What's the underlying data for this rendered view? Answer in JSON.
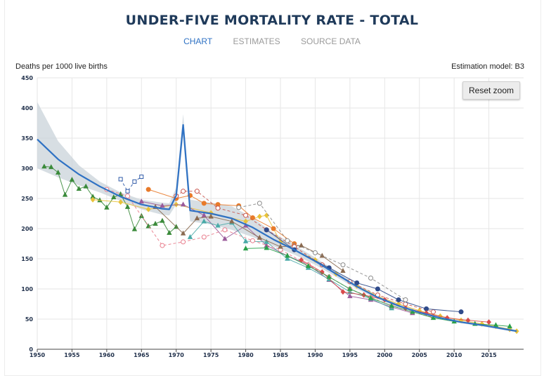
{
  "title": "UNDER-FIVE MORTALITY RATE - TOTAL",
  "tabs": [
    {
      "label": "CHART",
      "active": true
    },
    {
      "label": "ESTIMATES",
      "active": false
    },
    {
      "label": "SOURCE DATA",
      "active": false
    }
  ],
  "y_axis_label": "Deaths per 1000 live births",
  "model_label": "Estimation model: B3",
  "reset_zoom_label": "Reset zoom",
  "colors": {
    "estimate_line": "#2f72c4",
    "uncertainty_band": "#c9d3d9",
    "grid": "#e6e6e6"
  },
  "chart_data": {
    "type": "line",
    "xlim": [
      1950,
      2020
    ],
    "ylim": [
      0,
      450
    ],
    "x_ticks": [
      1950,
      1955,
      1960,
      1965,
      1970,
      1975,
      1980,
      1985,
      1990,
      1995,
      2000,
      2005,
      2010,
      2015
    ],
    "y_ticks": [
      0,
      50,
      100,
      150,
      200,
      250,
      300,
      350,
      400,
      450
    ],
    "grid": true,
    "estimate": {
      "x": [
        1950,
        1953,
        1956,
        1959,
        1962,
        1965,
        1968,
        1969,
        1970,
        1971,
        1972,
        1975,
        1978,
        1981,
        1984,
        1987,
        1990,
        1993,
        1996,
        1999,
        2002,
        2005,
        2008,
        2011,
        2014,
        2017,
        2019
      ],
      "y": [
        348,
        315,
        290,
        270,
        253,
        240,
        233,
        232,
        255,
        372,
        230,
        225,
        217,
        202,
        182,
        165,
        146,
        125,
        104,
        86,
        72,
        61,
        52,
        45,
        40,
        34,
        30
      ]
    },
    "band_upper": {
      "x": [
        1950,
        1953,
        1956,
        1959,
        1962,
        1965,
        1968,
        1969,
        1970,
        1971,
        1972,
        1975,
        1978,
        1981,
        1984,
        1987,
        1990,
        1993,
        1996,
        1999,
        2002,
        2005,
        2008,
        2011,
        2014,
        2017,
        2019
      ],
      "y": [
        410,
        345,
        305,
        278,
        260,
        248,
        243,
        242,
        268,
        390,
        248,
        243,
        237,
        218,
        193,
        173,
        152,
        130,
        108,
        89,
        75,
        63,
        54,
        47,
        42,
        36,
        32
      ]
    },
    "band_lower": {
      "x": [
        1950,
        1953,
        1956,
        1959,
        1962,
        1965,
        1968,
        1969,
        1970,
        1971,
        1972,
        1975,
        1978,
        1981,
        1984,
        1987,
        1990,
        1993,
        1996,
        1999,
        2002,
        2005,
        2008,
        2011,
        2014,
        2017,
        2019
      ],
      "y": [
        300,
        285,
        272,
        260,
        246,
        232,
        223,
        222,
        240,
        352,
        212,
        207,
        198,
        186,
        171,
        157,
        140,
        120,
        100,
        83,
        69,
        59,
        50,
        43,
        38,
        32,
        28
      ]
    },
    "series": [
      {
        "color": "#3a8a3a",
        "marker": "triangle",
        "style": "solid",
        "x": [
          1951,
          1952,
          1953,
          1954,
          1955,
          1956,
          1957,
          1958,
          1959,
          1960,
          1961,
          1962,
          1963,
          1964,
          1965,
          1966,
          1967,
          1968,
          1969,
          1970
        ],
        "y": [
          303,
          302,
          293,
          256,
          281,
          266,
          270,
          253,
          247,
          235,
          252,
          257,
          236,
          199,
          221,
          204,
          208,
          213,
          193,
          203
        ]
      },
      {
        "color": "#e8c23a",
        "marker": "diamond",
        "style": "solid",
        "x": [
          1958,
          1962,
          1966,
          1970,
          1975,
          1980,
          1982,
          1983,
          1985,
          1987,
          1990,
          1993,
          1996,
          1999,
          2002,
          2005,
          2008,
          2011,
          2014,
          2016,
          2018,
          2019
        ],
        "y": [
          248,
          244,
          232,
          240,
          226,
          212,
          220,
          222,
          178,
          165,
          148,
          125,
          105,
          88,
          75,
          64,
          55,
          48,
          42,
          38,
          33,
          30
        ]
      },
      {
        "color": "#e87a2a",
        "marker": "circle",
        "style": "solid",
        "x": [
          1966,
          1970,
          1972,
          1974,
          1976,
          1979,
          1981,
          1984,
          1987
        ],
        "y": [
          265,
          250,
          255,
          242,
          240,
          238,
          218,
          200,
          175
        ]
      },
      {
        "color": "#9a5a9a",
        "marker": "triangle",
        "style": "solid",
        "x": [
          1965,
          1968,
          1971,
          1974,
          1977,
          1980,
          1983,
          1986,
          1989,
          1992,
          1995,
          1998,
          2001,
          2004
        ],
        "y": [
          245,
          238,
          240,
          222,
          183,
          205,
          172,
          155,
          140,
          115,
          88,
          82,
          70,
          60
        ]
      },
      {
        "color": "#4aaaa8",
        "marker": "triangle",
        "style": "solid",
        "x": [
          1972,
          1974,
          1976,
          1978,
          1980,
          1983,
          1986,
          1989,
          1992,
          1995,
          1998,
          2001
        ],
        "y": [
          186,
          212,
          205,
          210,
          179,
          178,
          150,
          135,
          116,
          95,
          84,
          68
        ]
      },
      {
        "color": "#e87a8a",
        "marker": "circle",
        "style": "dashed",
        "x": [
          1960,
          1963,
          1968,
          1971,
          1974,
          1977,
          1981,
          1985,
          1989,
          1992,
          1995,
          1998,
          2001,
          2004,
          2007
        ],
        "y": [
          265,
          254,
          172,
          178,
          186,
          198,
          180,
          165,
          140,
          120,
          100,
          86,
          72,
          62,
          53
        ]
      },
      {
        "color": "#8a6a50",
        "marker": "triangle",
        "style": "solid",
        "x": [
          1967,
          1971,
          1973,
          1975,
          1978,
          1982,
          1985,
          1988,
          1991,
          1994
        ],
        "y": [
          236,
          192,
          217,
          220,
          212,
          185,
          170,
          172,
          155,
          130
        ]
      },
      {
        "color": "#2f5aa8",
        "marker": "square",
        "style": "dashed",
        "x": [
          1962,
          1963,
          1964,
          1965
        ],
        "y": [
          282,
          262,
          278,
          286
        ]
      },
      {
        "color": "#c8524a",
        "marker": "circle",
        "style": "dashed",
        "x": [
          1970,
          1971,
          1973,
          1976,
          1980,
          1983,
          1987,
          1991,
          1995,
          1999,
          2003,
          2007
        ],
        "y": [
          254,
          262,
          262,
          234,
          222,
          198,
          170,
          140,
          112,
          90,
          75,
          62
        ]
      },
      {
        "color": "#2f4a8a",
        "marker": "circle",
        "style": "solid",
        "x": [
          1983,
          1987,
          1992,
          1996,
          1999,
          2002,
          2006,
          2011
        ],
        "y": [
          198,
          165,
          135,
          110,
          100,
          82,
          67,
          62
        ]
      },
      {
        "color": "#8a8a8a",
        "marker": "circle",
        "style": "dashed",
        "x": [
          1979,
          1982,
          1986,
          1990,
          1994,
          1998,
          2003
        ],
        "y": [
          235,
          242,
          180,
          160,
          140,
          118,
          82
        ]
      },
      {
        "color": "#d84a4a",
        "marker": "diamond",
        "style": "solid",
        "x": [
          1988,
          1991,
          1994,
          1997,
          2000,
          2003,
          2006,
          2009,
          2012,
          2015
        ],
        "y": [
          148,
          128,
          95,
          90,
          82,
          68,
          60,
          52,
          48,
          45
        ]
      },
      {
        "color": "#2aa04a",
        "marker": "triangle",
        "style": "solid",
        "x": [
          1980,
          1983,
          1986,
          1989,
          1992,
          1995,
          1998,
          2001,
          2004,
          2007,
          2010,
          2013,
          2016,
          2018
        ],
        "y": [
          167,
          168,
          155,
          138,
          120,
          100,
          85,
          72,
          62,
          52,
          46,
          42,
          40,
          38
        ]
      }
    ]
  }
}
